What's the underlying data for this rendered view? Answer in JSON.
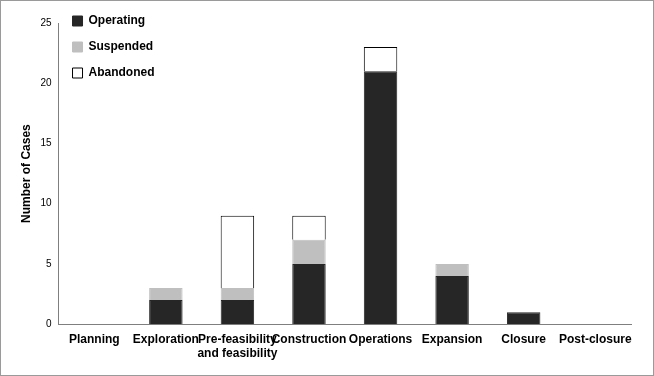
{
  "chart_data": {
    "type": "bar",
    "stacked": true,
    "grid": false,
    "legend": "top-left",
    "y_label": "Number of Cases",
    "categories": [
      "Planning",
      "Exploration",
      "Pre-feasibility and feasibility",
      "Construction",
      "Operations",
      "Expansion",
      "Closure",
      "Post-closure"
    ],
    "series": [
      {
        "name": "Operating",
        "color": "#262626",
        "values": [
          0,
          2,
          2,
          5,
          21,
          4,
          1,
          0
        ]
      },
      {
        "name": "Suspended",
        "color": "#bfbfbf",
        "values": [
          0,
          1,
          1,
          2,
          0,
          1,
          0,
          0
        ]
      },
      {
        "name": "Abandoned",
        "color": "#ffffff",
        "values": [
          0,
          0,
          6,
          2,
          2,
          0,
          0,
          0
        ]
      }
    ],
    "ylim": [
      0,
      25
    ],
    "yticks": [
      0,
      5,
      10,
      15,
      20,
      25
    ]
  }
}
